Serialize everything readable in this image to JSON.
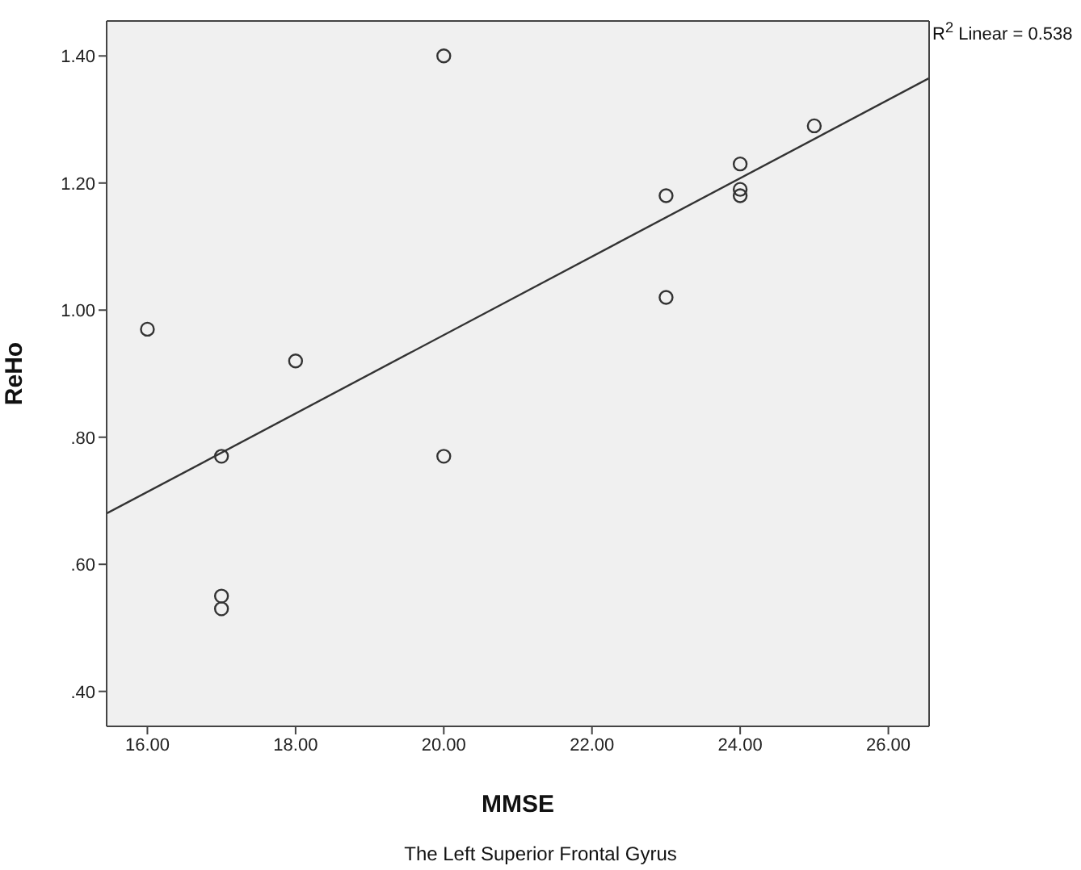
{
  "chart_data": {
    "type": "scatter",
    "xlabel": "MMSE",
    "ylabel": "ReHo",
    "annotations": [
      "R$^{2}$ Linear = 0.538",
      "The Left Superior Frontal Gyrus"
    ],
    "xlim": [
      15.45,
      26.55
    ],
    "xticks": [
      {
        "value": 16,
        "label": "16.00"
      },
      {
        "value": 18,
        "label": "18.00"
      },
      {
        "value": 20,
        "label": "20.00"
      },
      {
        "value": 22,
        "label": "22.00"
      },
      {
        "value": 24,
        "label": "24.00"
      },
      {
        "value": 26,
        "label": "26.00"
      }
    ],
    "ylim": [
      0.345,
      1.455
    ],
    "yticks": [
      {
        "value": 0.4,
        "label": ".40"
      },
      {
        "value": 0.6,
        "label": ".60"
      },
      {
        "value": 0.8,
        "label": ".80"
      },
      {
        "value": 1.0,
        "label": "1.00"
      },
      {
        "value": 1.2,
        "label": "1.20"
      },
      {
        "value": 1.4,
        "label": "1.40"
      }
    ],
    "grid": false,
    "legend": false,
    "series": [
      {
        "type": "scatter",
        "marker": "circle",
        "color": "#333333",
        "x": [
          16,
          17,
          17,
          17,
          18,
          20,
          20,
          23,
          23,
          24,
          24,
          24,
          25
        ],
        "values": [
          0.97,
          0.77,
          0.55,
          0.53,
          0.92,
          1.4,
          0.77,
          1.18,
          1.02,
          1.23,
          1.19,
          1.18,
          1.29
        ]
      },
      {
        "type": "line",
        "marker": "none",
        "color": "#333333",
        "x": [
          15.45,
          26.55
        ],
        "values": [
          0.68,
          1.365
        ]
      }
    ]
  }
}
